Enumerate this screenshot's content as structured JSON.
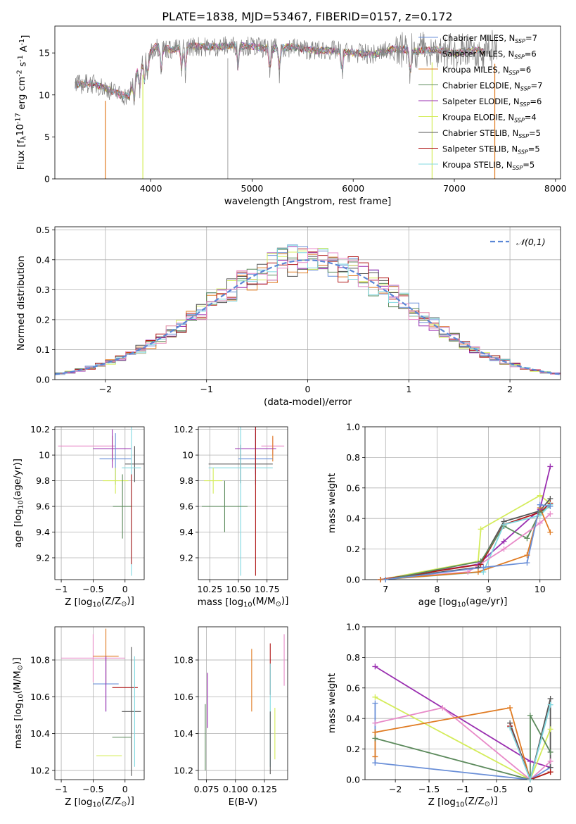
{
  "figure_title": "PLATE=1838, MJD=53467, FIBERID=0157, z=0.172",
  "colors": {
    "Chabrier MILES": "#6a8fd8",
    "Salpeter MILES": "#b0b0b0",
    "Kroupa MILES": "#e07b22",
    "Chabrier ELODIE": "#5c8a5c",
    "Salpeter ELODIE": "#9a2fb0",
    "Kroupa ELODIE": "#d4ec5a",
    "Chabrier STELIB": "#555555",
    "Salpeter STELIB": "#b01818",
    "Kroupa STELIB": "#80d8e0",
    "pink": "#e88ac8",
    "gauss": "#5b87d6"
  },
  "chart_data": [
    {
      "type": "line",
      "id": "spectrum",
      "xlabel": "wavelength [Angstrom, rest frame]",
      "ylabel": "Flux [f$_\\lambda$10$^{-17}$ erg cm$^{-2}$ s$^{-1}$ A$^{-1}$]",
      "xlim": [
        3050,
        8050
      ],
      "ylim": [
        0,
        18.2
      ],
      "xticks": [
        4000,
        5000,
        6000,
        7000,
        8000
      ],
      "yticks": [
        0,
        5,
        10,
        15
      ],
      "grid": false,
      "legend": "upper right",
      "observed_color": "#808080",
      "legend_entries": [
        {
          "name": "Chabrier MILES",
          "nssp": "7",
          "color_key": "Chabrier MILES"
        },
        {
          "name": "Salpeter MILES",
          "nssp": "6",
          "color_key": "Salpeter MILES"
        },
        {
          "name": "Kroupa MILES",
          "nssp": "6",
          "color_key": "Kroupa MILES"
        },
        {
          "name": "Chabrier ELODIE",
          "nssp": "7",
          "color_key": "Chabrier ELODIE"
        },
        {
          "name": "Salpeter ELODIE",
          "nssp": "6",
          "color_key": "Salpeter ELODIE"
        },
        {
          "name": "Kroupa ELODIE",
          "nssp": "4",
          "color_key": "Kroupa ELODIE"
        },
        {
          "name": "Chabrier STELIB",
          "nssp": "5",
          "color_key": "Chabrier STELIB"
        },
        {
          "name": "Salpeter STELIB",
          "nssp": "5",
          "color_key": "Salpeter STELIB"
        },
        {
          "name": "Kroupa STELIB",
          "nssp": "5",
          "color_key": "Kroupa STELIB"
        }
      ],
      "continuum": {
        "x": [
          3250,
          3400,
          3550,
          3700,
          3780,
          3850,
          3950,
          4050,
          4200,
          4400,
          4600,
          4800,
          5000,
          5200,
          5400,
          5600,
          5800,
          6000,
          6200,
          6400,
          6600,
          6800,
          7000,
          7200,
          7300
        ],
        "y": [
          11.2,
          11.4,
          10.8,
          10.0,
          9.8,
          12.5,
          14.5,
          15.8,
          15.4,
          15.8,
          15.7,
          15.9,
          15.8,
          15.5,
          15.7,
          15.3,
          15.3,
          15.0,
          14.8,
          15.5,
          15.2,
          15.4,
          15.0,
          15.3,
          15.2
        ]
      },
      "drops": [
        {
          "x": 3550,
          "key": "Kroupa MILES"
        },
        {
          "x": 3920,
          "key": "Kroupa ELODIE"
        },
        {
          "x": 4760,
          "key": "Salpeter MILES"
        },
        {
          "x": 6780,
          "key": "Kroupa ELODIE"
        },
        {
          "x": 7400,
          "key": "Kroupa MILES"
        }
      ]
    },
    {
      "type": "histogram",
      "id": "residuals",
      "xlabel": "(data-model)/error",
      "ylabel": "Normed distribution",
      "xlim": [
        -2.5,
        2.5
      ],
      "ylim": [
        0,
        0.51
      ],
      "xticks": [
        -2,
        -1,
        0,
        1,
        2
      ],
      "yticks": [
        0.0,
        0.1,
        0.2,
        0.3,
        0.4,
        0.5
      ],
      "grid": true,
      "legend": "upper right",
      "gauss_label": "$\\mathcal{N}(0,1)$",
      "bin_width": 0.1
    },
    {
      "type": "errorbar",
      "id": "age_vs_Z",
      "xlabel": "Z [log$_{10}$(Z/Z$_\\odot$)]",
      "ylabel": "age  [log$_{10}$(age/yr)]",
      "xlim": [
        -1.1,
        0.3
      ],
      "ylim": [
        9.03,
        10.22
      ],
      "xticks": [
        -1.0,
        -0.5,
        0.0
      ],
      "yticks": [
        9.2,
        9.4,
        9.6,
        9.8,
        10.0,
        10.2
      ],
      "grid": true,
      "points": [
        {
          "key": "pink",
          "x": -0.6,
          "xe": 0.45,
          "y": 10.07,
          "ye": 0.0
        },
        {
          "key": "Kroupa MILES",
          "x": -0.2,
          "xe": 0.3,
          "y": 10.05,
          "ye": 0.1
        },
        {
          "key": "Salpeter ELODIE",
          "x": -0.2,
          "xe": 0.3,
          "y": 10.05,
          "ye": 0.15
        },
        {
          "key": "Chabrier MILES",
          "x": -0.15,
          "xe": 0.25,
          "y": 9.97,
          "ye": 0.2
        },
        {
          "key": "Chabrier STELIB",
          "x": 0.15,
          "xe": 0.15,
          "y": 9.93,
          "ye": 0.14
        },
        {
          "key": "Kroupa STELIB",
          "x": 0.1,
          "xe": 0.15,
          "y": 9.9,
          "ye": 0.84
        },
        {
          "key": "Kroupa ELODIE",
          "x": -0.15,
          "xe": 0.2,
          "y": 9.8,
          "ye": 0.1
        },
        {
          "key": "Chabrier ELODIE",
          "x": -0.04,
          "xe": 0.15,
          "y": 9.6,
          "ye": 0.25
        },
        {
          "key": "Salpeter STELIB",
          "x": 0.1,
          "xe": 0.0,
          "y": 9.5,
          "ye": 0.35
        }
      ]
    },
    {
      "type": "errorbar",
      "id": "age_vs_mass",
      "xlabel": "mass [log$_{10}$(M/M$_\\odot$)]",
      "ylabel": "",
      "xlim": [
        10.15,
        10.93
      ],
      "ylim": [
        9.03,
        10.22
      ],
      "xticks": [
        10.25,
        10.5,
        10.75
      ],
      "yticks": [
        9.2,
        9.4,
        9.6,
        9.8,
        10.0,
        10.2
      ],
      "xtick_labels": [
        "10.25",
        "10.50",
        "10.75"
      ],
      "grid": true,
      "points": [
        {
          "key": "pink",
          "x": 10.8,
          "xe": 0.1,
          "y": 10.07,
          "ye": 0.07
        },
        {
          "key": "Kroupa MILES",
          "x": 10.8,
          "xe": 0.0,
          "y": 10.05,
          "ye": 0.1
        },
        {
          "key": "Salpeter ELODIE",
          "x": 10.65,
          "xe": 0.18,
          "y": 10.05,
          "ye": 0.2
        },
        {
          "key": "Chabrier MILES",
          "x": 10.65,
          "xe": 0.15,
          "y": 9.97,
          "ye": 0.2
        },
        {
          "key": "Chabrier STELIB",
          "x": 10.52,
          "xe": 0.28,
          "y": 9.93,
          "ye": 0.15
        },
        {
          "key": "Kroupa STELIB",
          "x": 10.52,
          "xe": 0.28,
          "y": 9.9,
          "ye": 0.84
        },
        {
          "key": "Salpeter STELIB",
          "x": 10.65,
          "xe": 0.0,
          "y": 9.9,
          "ye": 0.84
        },
        {
          "key": "Kroupa ELODIE",
          "x": 10.28,
          "xe": 0.08,
          "y": 9.8,
          "ye": 0.1
        },
        {
          "key": "Chabrier ELODIE",
          "x": 10.38,
          "xe": 0.2,
          "y": 9.6,
          "ye": 0.2
        }
      ]
    },
    {
      "type": "line",
      "id": "weight_vs_age",
      "xlabel": "age  [log$_{10}$(age/yr)]",
      "ylabel": "mass weight",
      "xlim": [
        6.6,
        10.4
      ],
      "ylim": [
        0,
        1.0
      ],
      "xticks": [
        7,
        8,
        9,
        10
      ],
      "yticks": [
        0.0,
        0.2,
        0.4,
        0.6,
        0.8,
        1.0
      ],
      "grid": true,
      "series": [
        {
          "key": "Kroupa ELODIE",
          "x": [
            6.9,
            8.8,
            8.85,
            10.0,
            10.2
          ],
          "y": [
            0.0,
            0.12,
            0.33,
            0.55,
            0.5
          ]
        },
        {
          "key": "Salpeter ELODIE",
          "x": [
            6.9,
            8.8,
            9.3,
            10.0,
            10.2
          ],
          "y": [
            0.0,
            0.1,
            0.25,
            0.46,
            0.74
          ]
        },
        {
          "key": "Chabrier STELIB",
          "x": [
            6.9,
            8.8,
            9.3,
            10.0,
            10.2
          ],
          "y": [
            0.0,
            0.08,
            0.38,
            0.45,
            0.53
          ]
        },
        {
          "key": "Salpeter STELIB",
          "x": [
            6.9,
            8.85,
            9.3,
            10.0,
            10.2
          ],
          "y": [
            0.0,
            0.1,
            0.36,
            0.44,
            0.5
          ]
        },
        {
          "key": "Chabrier ELODIE",
          "x": [
            7.0,
            8.85,
            9.3,
            9.75,
            10.0,
            10.2
          ],
          "y": [
            0.0,
            0.12,
            0.35,
            0.27,
            0.44,
            0.48
          ]
        },
        {
          "key": "Kroupa STELIB",
          "x": [
            6.9,
            8.9,
            9.3,
            10.0,
            10.2
          ],
          "y": [
            0.0,
            0.05,
            0.36,
            0.42,
            0.49
          ]
        },
        {
          "key": "pink",
          "x": [
            6.9,
            8.6,
            9.3,
            10.0,
            10.2
          ],
          "y": [
            0.0,
            0.05,
            0.2,
            0.37,
            0.43
          ]
        },
        {
          "key": "Kroupa MILES",
          "x": [
            6.9,
            8.8,
            9.75,
            10.0,
            10.2
          ],
          "y": [
            0.0,
            0.05,
            0.16,
            0.47,
            0.31
          ]
        },
        {
          "key": "Chabrier MILES",
          "x": [
            7.0,
            8.9,
            9.75,
            10.0,
            10.2
          ],
          "y": [
            0.0,
            0.08,
            0.11,
            0.49,
            0.48
          ]
        }
      ]
    },
    {
      "type": "errorbar",
      "id": "mass_vs_Z",
      "xlabel": "Z [log$_{10}$(Z/Z$_\\odot$)]",
      "ylabel": "mass [log$_{10}$(M/M$_\\odot$)]",
      "xlim": [
        -1.1,
        0.3
      ],
      "ylim": [
        10.15,
        10.98
      ],
      "xticks": [
        -1.0,
        -0.5,
        0.0
      ],
      "yticks": [
        10.2,
        10.4,
        10.6,
        10.8
      ],
      "grid": true,
      "points": [
        {
          "key": "pink",
          "x": -0.5,
          "xe": 0.5,
          "y": 10.81,
          "ye": 0.13
        },
        {
          "key": "Kroupa MILES",
          "x": -0.3,
          "xe": 0.2,
          "y": 10.82,
          "ye": 0.15
        },
        {
          "key": "Chabrier MILES",
          "x": -0.3,
          "xe": 0.2,
          "y": 10.67,
          "ye": 0.15
        },
        {
          "key": "Salpeter ELODIE",
          "x": -0.3,
          "xe": 0.0,
          "y": 10.67,
          "ye": 0.15
        },
        {
          "key": "Salpeter STELIB",
          "x": 0.0,
          "xe": 0.2,
          "y": 10.65,
          "ye": 0.0
        },
        {
          "key": "Chabrier STELIB",
          "x": 0.1,
          "xe": 0.15,
          "y": 10.52,
          "ye": 0.35
        },
        {
          "key": "Chabrier ELODIE",
          "x": -0.05,
          "xe": 0.15,
          "y": 10.38,
          "ye": 0.0
        },
        {
          "key": "Kroupa ELODIE",
          "x": -0.25,
          "xe": 0.2,
          "y": 10.28,
          "ye": 0.0
        },
        {
          "key": "Kroupa STELIB",
          "x": 0.15,
          "xe": 0.0,
          "y": 10.52,
          "ye": 0.3
        }
      ]
    },
    {
      "type": "errorbar",
      "id": "mass_vs_ebv",
      "xlabel": "E(B-V)",
      "ylabel": "",
      "xlim": [
        0.068,
        0.145
      ],
      "ylim": [
        10.15,
        10.98
      ],
      "xticks": [
        0.075,
        0.1,
        0.125
      ],
      "yticks": [
        10.2,
        10.4,
        10.6,
        10.8
      ],
      "xtick_labels": [
        "0.075",
        "0.100",
        "0.125"
      ],
      "grid": true,
      "points": [
        {
          "key": "Chabrier ELODIE",
          "x": 0.074,
          "xe": 0.0,
          "y": 10.38,
          "ye": 0.18
        },
        {
          "key": "Salpeter ELODIE",
          "x": 0.076,
          "xe": 0.0,
          "y": 10.58,
          "ye": 0.15
        },
        {
          "key": "Kroupa MILES",
          "x": 0.114,
          "xe": 0.0,
          "y": 10.69,
          "ye": 0.17
        },
        {
          "key": "Salpeter STELIB",
          "x": 0.13,
          "xe": 0.0,
          "y": 10.75,
          "ye": 0.14
        },
        {
          "key": "Kroupa STELIB",
          "x": 0.13,
          "xe": 0.0,
          "y": 10.5,
          "ye": 0.28
        },
        {
          "key": "Chabrier STELIB",
          "x": 0.13,
          "xe": 0.0,
          "y": 10.35,
          "ye": 0.17
        },
        {
          "key": "Kroupa ELODIE",
          "x": 0.134,
          "xe": 0.0,
          "y": 10.4,
          "ye": 0.14
        },
        {
          "key": "pink",
          "x": 0.142,
          "xe": 0.0,
          "y": 10.8,
          "ye": 0.14
        }
      ]
    },
    {
      "type": "line",
      "id": "weight_vs_Z",
      "xlabel": "Z [log$_{10}$(Z/Z$_\\odot$)]",
      "ylabel": "mass weight",
      "xlim": [
        -2.45,
        0.45
      ],
      "ylim": [
        0,
        1.0
      ],
      "xticks": [
        -2.0,
        -1.5,
        -1.0,
        -0.5,
        0.0
      ],
      "yticks": [
        0.0,
        0.2,
        0.4,
        0.6,
        0.8,
        1.0
      ],
      "grid": true,
      "series": [
        {
          "key": "Salpeter ELODIE",
          "x": [
            -2.3,
            0.0,
            0.3
          ],
          "y": [
            0.74,
            0.12,
            0.08
          ]
        },
        {
          "key": "Kroupa ELODIE",
          "x": [
            -2.3,
            0.0,
            0.3
          ],
          "y": [
            0.54,
            0.0,
            0.33
          ]
        },
        {
          "key": "pink",
          "x": [
            -2.3,
            -1.3,
            0.0,
            0.3
          ],
          "y": [
            0.37,
            0.47,
            0.0,
            0.12
          ]
        },
        {
          "key": "Kroupa MILES",
          "x": [
            -2.3,
            -0.3,
            0.0,
            0.3
          ],
          "y": [
            0.31,
            0.47,
            0.0,
            0.05
          ]
        },
        {
          "key": "Chabrier ELODIE",
          "x": [
            -2.3,
            0.0,
            0.0,
            0.3
          ],
          "y": [
            0.27,
            0.0,
            0.42,
            0.18
          ]
        },
        {
          "key": "Chabrier MILES",
          "x": [
            -2.3,
            0.0,
            0.3
          ],
          "y": [
            0.11,
            0.0,
            0.08
          ]
        },
        {
          "key": "Chabrier STELIB",
          "x": [
            -0.3,
            0.0,
            0.3,
            0.3
          ],
          "y": [
            0.37,
            0.0,
            0.53,
            0.08
          ]
        },
        {
          "key": "Salpeter STELIB",
          "x": [
            -0.3,
            0.0,
            0.3
          ],
          "y": [
            0.35,
            0.0,
            0.05
          ]
        },
        {
          "key": "Kroupa STELIB",
          "x": [
            -0.3,
            0.0,
            0.3
          ],
          "y": [
            0.34,
            0.0,
            0.49
          ]
        },
        {
          "key": "Chabrier MILES",
          "x": [
            -2.3,
            -2.3
          ],
          "y": [
            0.5,
            0.11
          ]
        },
        {
          "key": "Kroupa MILES",
          "x": [
            -2.3,
            -2.3
          ],
          "y": [
            0.31,
            0.15
          ]
        }
      ]
    }
  ]
}
